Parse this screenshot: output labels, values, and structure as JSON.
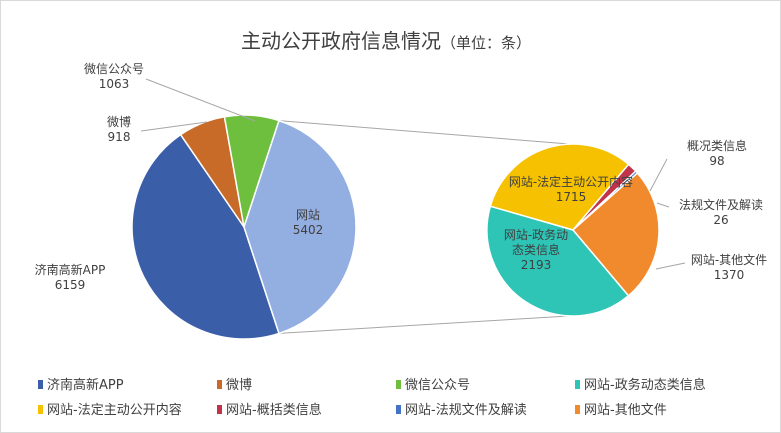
{
  "chart_data": {
    "type": "pie",
    "title": "主动公开政府信息情况",
    "subtitle": "（单位：条）",
    "main_pie": [
      {
        "name": "济南高新APP",
        "value": 6159,
        "color": "#3a5ea8"
      },
      {
        "name": "微博",
        "value": 918,
        "color": "#c86a28"
      },
      {
        "name": "微信公众号",
        "value": 1063,
        "color": "#6fbf3f"
      },
      {
        "name": "网站",
        "value": 5402,
        "color": "#93aee0"
      }
    ],
    "sub_pie": [
      {
        "name": "网站-法定主动公开内容",
        "label": "网站-法定主动公开内容",
        "value": 1715,
        "color": "#f5c100"
      },
      {
        "name": "网站-概括类信息",
        "label": "概况类信息",
        "value": 98,
        "color": "#c0334a"
      },
      {
        "name": "网站-法规文件及解读",
        "label": "法规文件及解读",
        "value": 26,
        "color": "#4472c4"
      },
      {
        "name": "网站-其他文件",
        "label": "网站-其他文件",
        "value": 1370,
        "color": "#f08a2c"
      },
      {
        "name": "网站-政务动态类信息",
        "label": "网站-政务动态类信息",
        "value": 2193,
        "color": "#2ec4b6"
      }
    ],
    "legend": {
      "placement": "bottom",
      "items": [
        {
          "name": "济南高新APP",
          "color": "#3a5ea8"
        },
        {
          "name": "微博",
          "color": "#c86a28"
        },
        {
          "name": "微信公众号",
          "color": "#6fbf3f"
        },
        {
          "name": "网站-政务动态类信息",
          "color": "#2ec4b6"
        },
        {
          "name": "网站-法定主动公开内容",
          "color": "#f5c100"
        },
        {
          "name": "网站-概括类信息",
          "color": "#c0334a"
        },
        {
          "name": "网站-法规文件及解读",
          "color": "#4472c4"
        },
        {
          "name": "网站-其他文件",
          "color": "#f08a2c"
        }
      ]
    }
  }
}
